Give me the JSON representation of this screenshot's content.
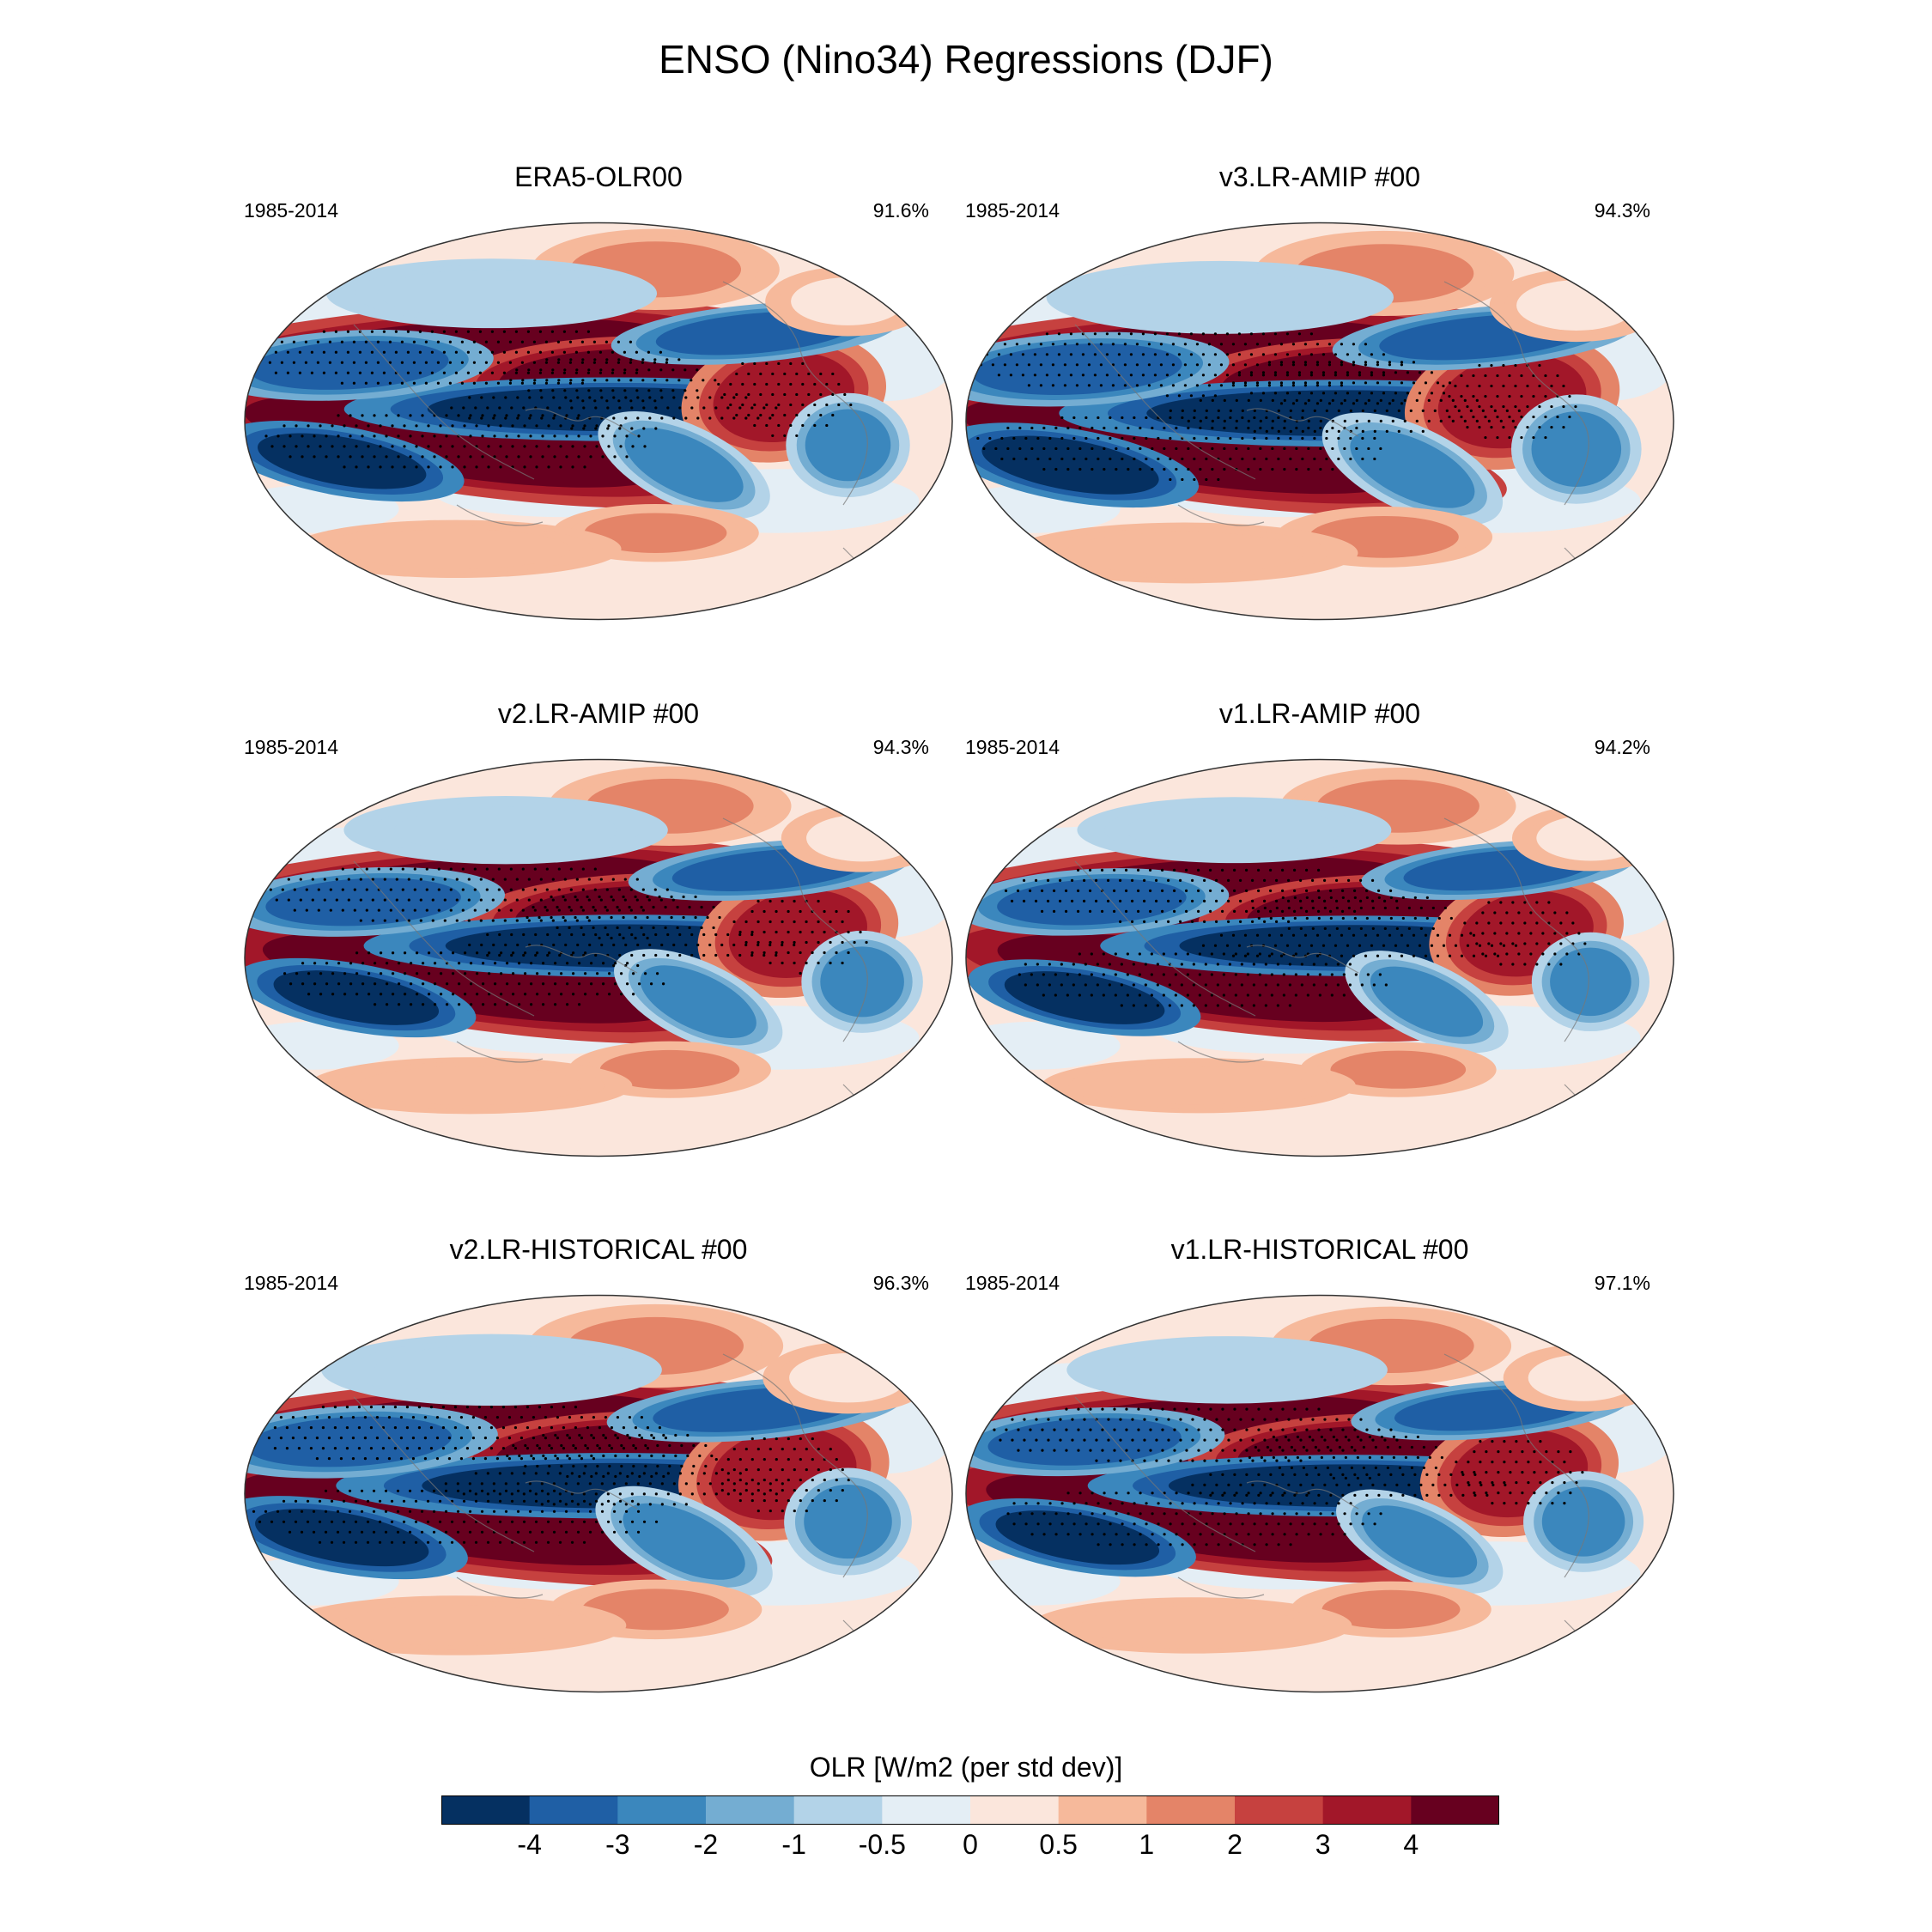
{
  "title": "ENSO (Nino34) Regressions (DJF)",
  "panels": [
    {
      "title": "ERA5-OLR00",
      "period": "1985-2014",
      "pct": "91.6%"
    },
    {
      "title": "v3.LR-AMIP  #00",
      "period": "1985-2014",
      "pct": "94.3%"
    },
    {
      "title": "v2.LR-AMIP  #00",
      "period": "1985-2014",
      "pct": "94.3%"
    },
    {
      "title": "v1.LR-AMIP  #00",
      "period": "1985-2014",
      "pct": "94.2%"
    },
    {
      "title": "v2.LR-HISTORICAL  #00",
      "period": "1985-2014",
      "pct": "96.3%"
    },
    {
      "title": "v1.LR-HISTORICAL  #00",
      "period": "1985-2014",
      "pct": "97.1%"
    }
  ],
  "colorbar": {
    "title": "OLR [W/m2 (per std dev)]",
    "ticks": [
      "-4",
      "-3",
      "-2",
      "-1",
      "-0.5",
      "0",
      "0.5",
      "1",
      "2",
      "3",
      "4"
    ],
    "colors": [
      "#053061",
      "#1f5fa5",
      "#3b87bd",
      "#74add2",
      "#b3d3e8",
      "#e4eef5",
      "#fbe6dc",
      "#f6b99b",
      "#e48468",
      "#c6413f",
      "#a21729",
      "#67001f"
    ]
  }
}
